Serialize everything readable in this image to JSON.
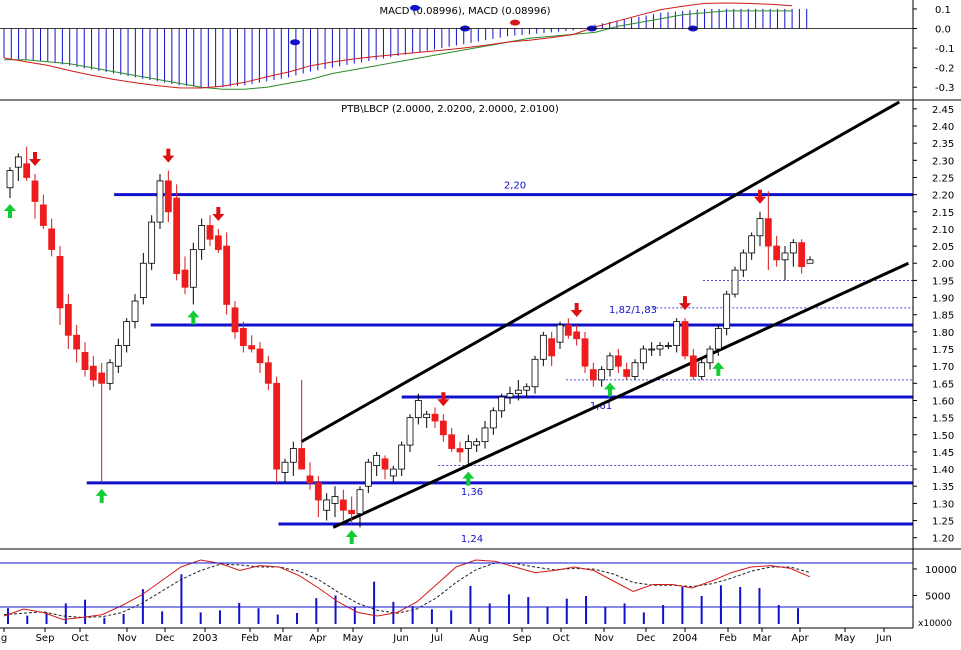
{
  "chart_data": [
    {
      "panel": "macd",
      "type": "line",
      "title": "MACD (0.08996), MACD (0.08996)",
      "ylim": [
        -0.35,
        0.12
      ],
      "yticks": [
        "0.1",
        "0.0",
        "-0.1",
        "-0.2",
        "-0.3"
      ],
      "grid": false,
      "colors": {
        "macd": "#d11a1a",
        "signal": "#2a8c2a",
        "histogram": "#1111cc"
      },
      "histogram": [
        -0.15,
        -0.16,
        -0.17,
        -0.19,
        -0.21,
        -0.23,
        -0.25,
        -0.27,
        -0.29,
        -0.3,
        -0.3,
        -0.29,
        -0.27,
        -0.25,
        -0.22,
        -0.2,
        -0.18,
        -0.16,
        -0.14,
        -0.12,
        -0.1,
        -0.08,
        -0.06,
        -0.04,
        -0.03,
        -0.02,
        -0.01,
        0.02,
        0.04,
        0.06,
        0.08,
        0.09,
        0.1,
        0.1,
        0.1,
        0.1,
        0.1
      ]
    },
    {
      "panel": "price",
      "type": "candlestick",
      "title": "PTB\\LBCP (2.0000, 2.0200, 2.0000, 2.0100)",
      "ylim": [
        1.17,
        2.47
      ],
      "yticks": [
        "2.45",
        "2.40",
        "2.35",
        "2.30",
        "2.25",
        "2.20",
        "2.15",
        "2.10",
        "2.05",
        "2.00",
        "1.95",
        "1.90",
        "1.85",
        "1.80",
        "1.75",
        "1.70",
        "1.65",
        "1.60",
        "1.55",
        "1.50",
        "1.45",
        "1.40",
        "1.35",
        "1.30",
        "1.25",
        "1.20"
      ],
      "x_axis_labels": [
        "g",
        "Sep",
        "Oct",
        "Nov",
        "Dec",
        "2003",
        "Feb",
        "Mar",
        "Apr",
        "May",
        "Jun",
        "Jul",
        "Aug",
        "Sep",
        "Oct",
        "Nov",
        "Dec",
        "2004",
        "Feb",
        "Mar",
        "Apr",
        "May",
        "Jun"
      ],
      "horizontal_lines": [
        {
          "value": 2.2,
          "label": "2,20"
        },
        {
          "value": 1.82,
          "label": "1,82/1,83"
        },
        {
          "value": 1.61,
          "label": "1,61"
        },
        {
          "value": 1.36,
          "label": "1,36"
        },
        {
          "value": 1.24,
          "label": "1,24"
        }
      ],
      "minor_lines": [
        1.95,
        1.87,
        1.66,
        1.41
      ],
      "channel_lines": [
        {
          "from": [
            0.33,
            1.48
          ],
          "to": [
            0.985,
            2.47
          ]
        },
        {
          "from": [
            0.365,
            1.23
          ],
          "to": [
            0.995,
            2.0
          ]
        }
      ],
      "candles_ohlc": [
        [
          2.22,
          2.28,
          2.19,
          2.27
        ],
        [
          2.28,
          2.32,
          2.24,
          2.31
        ],
        [
          2.29,
          2.34,
          2.24,
          2.25
        ],
        [
          2.24,
          2.26,
          2.13,
          2.18
        ],
        [
          2.17,
          2.2,
          2.1,
          2.11
        ],
        [
          2.1,
          2.13,
          2.02,
          2.04
        ],
        [
          2.02,
          2.05,
          1.82,
          1.87
        ],
        [
          1.88,
          1.91,
          1.75,
          1.79
        ],
        [
          1.79,
          1.82,
          1.71,
          1.75
        ],
        [
          1.74,
          1.77,
          1.67,
          1.69
        ],
        [
          1.7,
          1.73,
          1.64,
          1.66
        ],
        [
          1.68,
          1.71,
          1.36,
          1.65
        ],
        [
          1.65,
          1.72,
          1.63,
          1.71
        ],
        [
          1.7,
          1.78,
          1.68,
          1.76
        ],
        [
          1.76,
          1.84,
          1.74,
          1.83
        ],
        [
          1.83,
          1.91,
          1.81,
          1.89
        ],
        [
          1.9,
          2.03,
          1.88,
          2.0
        ],
        [
          2.0,
          2.14,
          1.98,
          2.12
        ],
        [
          2.12,
          2.26,
          2.1,
          2.24
        ],
        [
          2.24,
          2.27,
          2.12,
          2.15
        ],
        [
          2.19,
          2.23,
          1.95,
          1.97
        ],
        [
          1.98,
          2.02,
          1.91,
          1.93
        ],
        [
          1.93,
          2.06,
          1.88,
          2.04
        ],
        [
          2.04,
          2.13,
          2.01,
          2.11
        ],
        [
          2.11,
          2.14,
          2.05,
          2.07
        ],
        [
          2.08,
          2.1,
          2.03,
          2.04
        ],
        [
          2.05,
          2.09,
          1.85,
          1.88
        ],
        [
          1.87,
          1.89,
          1.78,
          1.8
        ],
        [
          1.81,
          1.83,
          1.74,
          1.76
        ],
        [
          1.76,
          1.79,
          1.74,
          1.75
        ],
        [
          1.75,
          1.77,
          1.68,
          1.71
        ],
        [
          1.71,
          1.73,
          1.63,
          1.65
        ],
        [
          1.65,
          1.67,
          1.36,
          1.4
        ],
        [
          1.39,
          1.43,
          1.36,
          1.42
        ],
        [
          1.42,
          1.48,
          1.38,
          1.46
        ],
        [
          1.46,
          1.66,
          1.4,
          1.4
        ],
        [
          1.38,
          1.42,
          1.34,
          1.36
        ],
        [
          1.36,
          1.38,
          1.26,
          1.31
        ],
        [
          1.28,
          1.33,
          1.25,
          1.31
        ],
        [
          1.3,
          1.35,
          1.26,
          1.32
        ],
        [
          1.31,
          1.34,
          1.25,
          1.28
        ],
        [
          1.28,
          1.32,
          1.24,
          1.27
        ],
        [
          1.27,
          1.35,
          1.23,
          1.34
        ],
        [
          1.35,
          1.43,
          1.33,
          1.42
        ],
        [
          1.41,
          1.45,
          1.38,
          1.44
        ],
        [
          1.43,
          1.44,
          1.37,
          1.4
        ],
        [
          1.38,
          1.41,
          1.36,
          1.4
        ],
        [
          1.4,
          1.48,
          1.38,
          1.47
        ],
        [
          1.47,
          1.56,
          1.45,
          1.55
        ],
        [
          1.55,
          1.62,
          1.53,
          1.6
        ],
        [
          1.55,
          1.57,
          1.52,
          1.56
        ],
        [
          1.56,
          1.58,
          1.52,
          1.54
        ],
        [
          1.54,
          1.56,
          1.48,
          1.5
        ],
        [
          1.5,
          1.52,
          1.45,
          1.46
        ],
        [
          1.46,
          1.48,
          1.42,
          1.45
        ],
        [
          1.46,
          1.5,
          1.41,
          1.48
        ],
        [
          1.47,
          1.49,
          1.45,
          1.48
        ],
        [
          1.48,
          1.54,
          1.46,
          1.52
        ],
        [
          1.52,
          1.58,
          1.5,
          1.57
        ],
        [
          1.57,
          1.62,
          1.55,
          1.61
        ],
        [
          1.61,
          1.64,
          1.59,
          1.62
        ],
        [
          1.62,
          1.66,
          1.6,
          1.63
        ],
        [
          1.63,
          1.65,
          1.61,
          1.64
        ],
        [
          1.64,
          1.73,
          1.62,
          1.72
        ],
        [
          1.72,
          1.8,
          1.7,
          1.79
        ],
        [
          1.78,
          1.8,
          1.7,
          1.73
        ],
        [
          1.77,
          1.83,
          1.75,
          1.82
        ],
        [
          1.82,
          1.84,
          1.78,
          1.79
        ],
        [
          1.8,
          1.82,
          1.76,
          1.78
        ],
        [
          1.78,
          1.8,
          1.68,
          1.7
        ],
        [
          1.69,
          1.71,
          1.64,
          1.66
        ],
        [
          1.66,
          1.7,
          1.64,
          1.69
        ],
        [
          1.69,
          1.74,
          1.67,
          1.73
        ],
        [
          1.73,
          1.75,
          1.68,
          1.7
        ],
        [
          1.69,
          1.71,
          1.66,
          1.67
        ],
        [
          1.67,
          1.72,
          1.66,
          1.71
        ],
        [
          1.71,
          1.76,
          1.69,
          1.75
        ],
        [
          1.75,
          1.77,
          1.73,
          1.75
        ],
        [
          1.75,
          1.77,
          1.73,
          1.76
        ],
        [
          1.76,
          1.77,
          1.75,
          1.76
        ],
        [
          1.76,
          1.84,
          1.74,
          1.83
        ],
        [
          1.83,
          1.84,
          1.72,
          1.73
        ],
        [
          1.73,
          1.75,
          1.66,
          1.67
        ],
        [
          1.67,
          1.72,
          1.66,
          1.71
        ],
        [
          1.71,
          1.76,
          1.69,
          1.75
        ],
        [
          1.75,
          1.82,
          1.73,
          1.81
        ],
        [
          1.81,
          1.92,
          1.79,
          1.91
        ],
        [
          1.91,
          1.99,
          1.9,
          1.98
        ],
        [
          1.98,
          2.04,
          1.96,
          2.03
        ],
        [
          2.03,
          2.09,
          2.01,
          2.08
        ],
        [
          2.08,
          2.15,
          2.05,
          2.13
        ],
        [
          2.13,
          2.21,
          1.98,
          2.05
        ],
        [
          2.05,
          2.08,
          1.99,
          2.01
        ],
        [
          2.01,
          2.05,
          1.95,
          2.03
        ],
        [
          2.03,
          2.07,
          1.99,
          2.06
        ],
        [
          2.06,
          2.07,
          1.97,
          1.99
        ],
        [
          2.0,
          2.02,
          2.0,
          2.01
        ]
      ],
      "signals": [
        {
          "i": 0,
          "dir": "up"
        },
        {
          "i": 3,
          "dir": "down"
        },
        {
          "i": 11,
          "dir": "up"
        },
        {
          "i": 19,
          "dir": "down"
        },
        {
          "i": 22,
          "dir": "up"
        },
        {
          "i": 25,
          "dir": "down"
        },
        {
          "i": 41,
          "dir": "up"
        },
        {
          "i": 52,
          "dir": "down"
        },
        {
          "i": 55,
          "dir": "up"
        },
        {
          "i": 68,
          "dir": "down"
        },
        {
          "i": 72,
          "dir": "up"
        },
        {
          "i": 81,
          "dir": "down"
        },
        {
          "i": 85,
          "dir": "up"
        },
        {
          "i": 90,
          "dir": "down"
        }
      ]
    },
    {
      "panel": "volume",
      "type": "bar",
      "yticks": [
        "10000",
        "5000"
      ],
      "unit_label": "x10000",
      "colors": {
        "bars": "#1111cc",
        "k_line": "#d11a1a",
        "d_line": "#222222"
      },
      "k_line": [
        10,
        20,
        15,
        5,
        8,
        12,
        25,
        40,
        60,
        80,
        90,
        85,
        75,
        82,
        80,
        68,
        50,
        30,
        15,
        10,
        15,
        30,
        55,
        80,
        90,
        88,
        80,
        72,
        75,
        80,
        75,
        60,
        45,
        55,
        55,
        50,
        60,
        72,
        80,
        82,
        78,
        66
      ],
      "d_line": [
        12,
        14,
        16,
        10,
        8,
        9,
        15,
        28,
        45,
        62,
        75,
        84,
        83,
        80,
        80,
        74,
        62,
        44,
        28,
        18,
        14,
        20,
        36,
        58,
        76,
        86,
        85,
        80,
        76,
        78,
        77,
        70,
        58,
        54,
        54,
        52,
        56,
        64,
        74,
        80,
        80,
        72
      ],
      "volume": [
        2600,
        1200,
        1800,
        3500,
        4200,
        800,
        1500,
        6200,
        2000,
        9000,
        1800,
        2200,
        3600,
        2600,
        1400,
        1700,
        4500,
        5000,
        2800,
        7600,
        3800,
        3000,
        2400,
        2200,
        6800,
        3500,
        5200,
        4700,
        2800,
        4400,
        4900,
        2900,
        3500,
        1800,
        3200,
        6600,
        4900,
        6900,
        6600,
        6400,
        3200,
        2600
      ]
    }
  ]
}
